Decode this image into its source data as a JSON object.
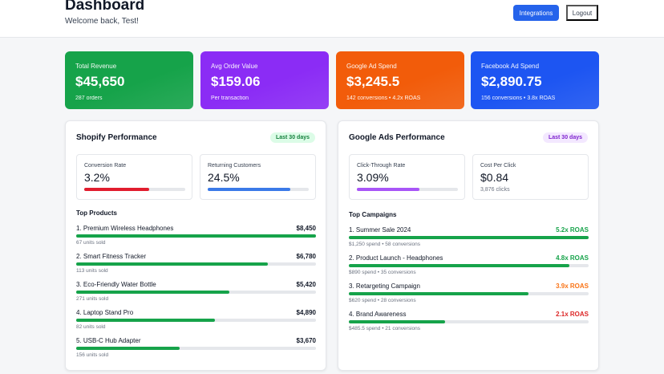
{
  "header": {
    "title": "Dashboard",
    "welcome": "Welcome back, Test!",
    "integrations_label": "Integrations",
    "logout_label": "Logout"
  },
  "stats": [
    {
      "label": "Total Revenue",
      "value": "$45,650",
      "meta": "287 orders",
      "color": "#16a34a"
    },
    {
      "label": "Avg Order Value",
      "value": "$159.06",
      "meta": "Per transaction",
      "color": "#8b2cf5"
    },
    {
      "label": "Google Ad Spend",
      "value": "$3,245.5",
      "meta": "142 conversions • 4.2x ROAS",
      "color": "#f25c0a"
    },
    {
      "label": "Facebook Ad Spend",
      "value": "$2,890.75",
      "meta": "156 conversions • 3.8x ROAS",
      "color": "#1d55f2"
    }
  ],
  "shopify": {
    "title": "Shopify Performance",
    "badge": "Last 30 days",
    "metrics": [
      {
        "label": "Conversion Rate",
        "value": "3.2%",
        "progress": 0.64,
        "color": "#e11d2e"
      },
      {
        "label": "Returning Customers",
        "value": "24.5%",
        "progress": 0.82,
        "color": "#3b7ae8"
      }
    ],
    "section_title": "Top Products",
    "products": [
      {
        "name": "1. Premium Wireless Headphones",
        "amount": "$8,450",
        "sub": "67 units sold",
        "progress": 1.0
      },
      {
        "name": "2. Smart Fitness Tracker",
        "amount": "$6,780",
        "sub": "113 units sold",
        "progress": 0.8
      },
      {
        "name": "3. Eco-Friendly Water Bottle",
        "amount": "$5,420",
        "sub": "271 units sold",
        "progress": 0.64
      },
      {
        "name": "4. Laptop Stand Pro",
        "amount": "$4,890",
        "sub": "82 units sold",
        "progress": 0.58
      },
      {
        "name": "5. USB-C Hub Adapter",
        "amount": "$3,670",
        "sub": "156 units sold",
        "progress": 0.43
      }
    ]
  },
  "google": {
    "title": "Google Ads Performance",
    "badge": "Last 30 days",
    "metrics": [
      {
        "label": "Click-Through Rate",
        "value": "3.09%",
        "progress": 0.62,
        "color": "#a855f7"
      },
      {
        "label": "Cost Per Click",
        "value": "$0.84",
        "sub": "3,876 clicks"
      }
    ],
    "section_title": "Top Campaigns",
    "campaigns": [
      {
        "name": "1. Summer Sale 2024",
        "roas": "5.2x ROAS",
        "sub": "$1,250 spend • 58 conversions",
        "progress": 1.0,
        "roas_color": "#16a34a"
      },
      {
        "name": "2. Product Launch - Headphones",
        "roas": "4.8x ROAS",
        "sub": "$890 spend • 35 conversions",
        "progress": 0.92,
        "roas_color": "#16a34a"
      },
      {
        "name": "3. Retargeting Campaign",
        "roas": "3.9x ROAS",
        "sub": "$620 spend • 28 conversions",
        "progress": 0.75,
        "roas_color": "#f97316"
      },
      {
        "name": "4. Brand Awareness",
        "roas": "2.1x ROAS",
        "sub": "$485.5 spend • 21 conversions",
        "progress": 0.4,
        "roas_color": "#dc2626"
      }
    ]
  }
}
